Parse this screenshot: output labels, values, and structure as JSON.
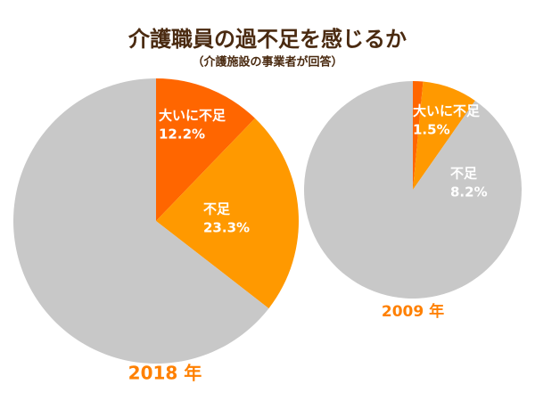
{
  "title": "介護職員の過不足を感じるか",
  "subtitle": "（介護施設の事業者が回答）",
  "chart_data": [
    {
      "type": "pie",
      "title": "2018 年",
      "categories": [
        "大いに不足",
        "不足",
        null
      ],
      "values": [
        12.2,
        23.3,
        64.5
      ],
      "value_labels": [
        "12.2%",
        "23.3%",
        null
      ],
      "colors": [
        "#ff6600",
        "#ff9900",
        "#c8c8c8"
      ]
    },
    {
      "type": "pie",
      "title": "2009 年",
      "categories": [
        "大いに不足",
        "不足",
        null
      ],
      "values": [
        1.5,
        8.2,
        90.3
      ],
      "value_labels": [
        "1.5%",
        "8.2%",
        null
      ],
      "colors": [
        "#ff6600",
        "#ff9900",
        "#c8c8c8"
      ]
    }
  ]
}
